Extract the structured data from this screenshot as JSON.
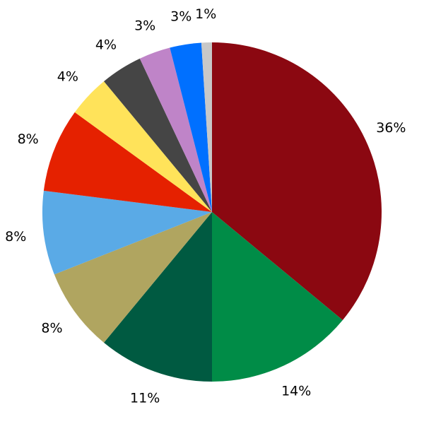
{
  "chart_data": {
    "type": "pie",
    "start_angle": "top",
    "direction": "clockwise",
    "values": [
      36,
      14,
      11,
      8,
      8,
      8,
      4,
      4,
      3,
      3,
      1
    ],
    "labels": [
      "36%",
      "14%",
      "11%",
      "8%",
      "8%",
      "8%",
      "4%",
      "4%",
      "3%",
      "3%",
      "1%"
    ],
    "colors": [
      "#8b0811",
      "#008c47",
      "#005a41",
      "#b0a560",
      "#5aaae6",
      "#e52100",
      "#ffe35a",
      "#454545",
      "#bf84c8",
      "#0070ff",
      "#c8c8c8"
    ],
    "legend": "none"
  }
}
